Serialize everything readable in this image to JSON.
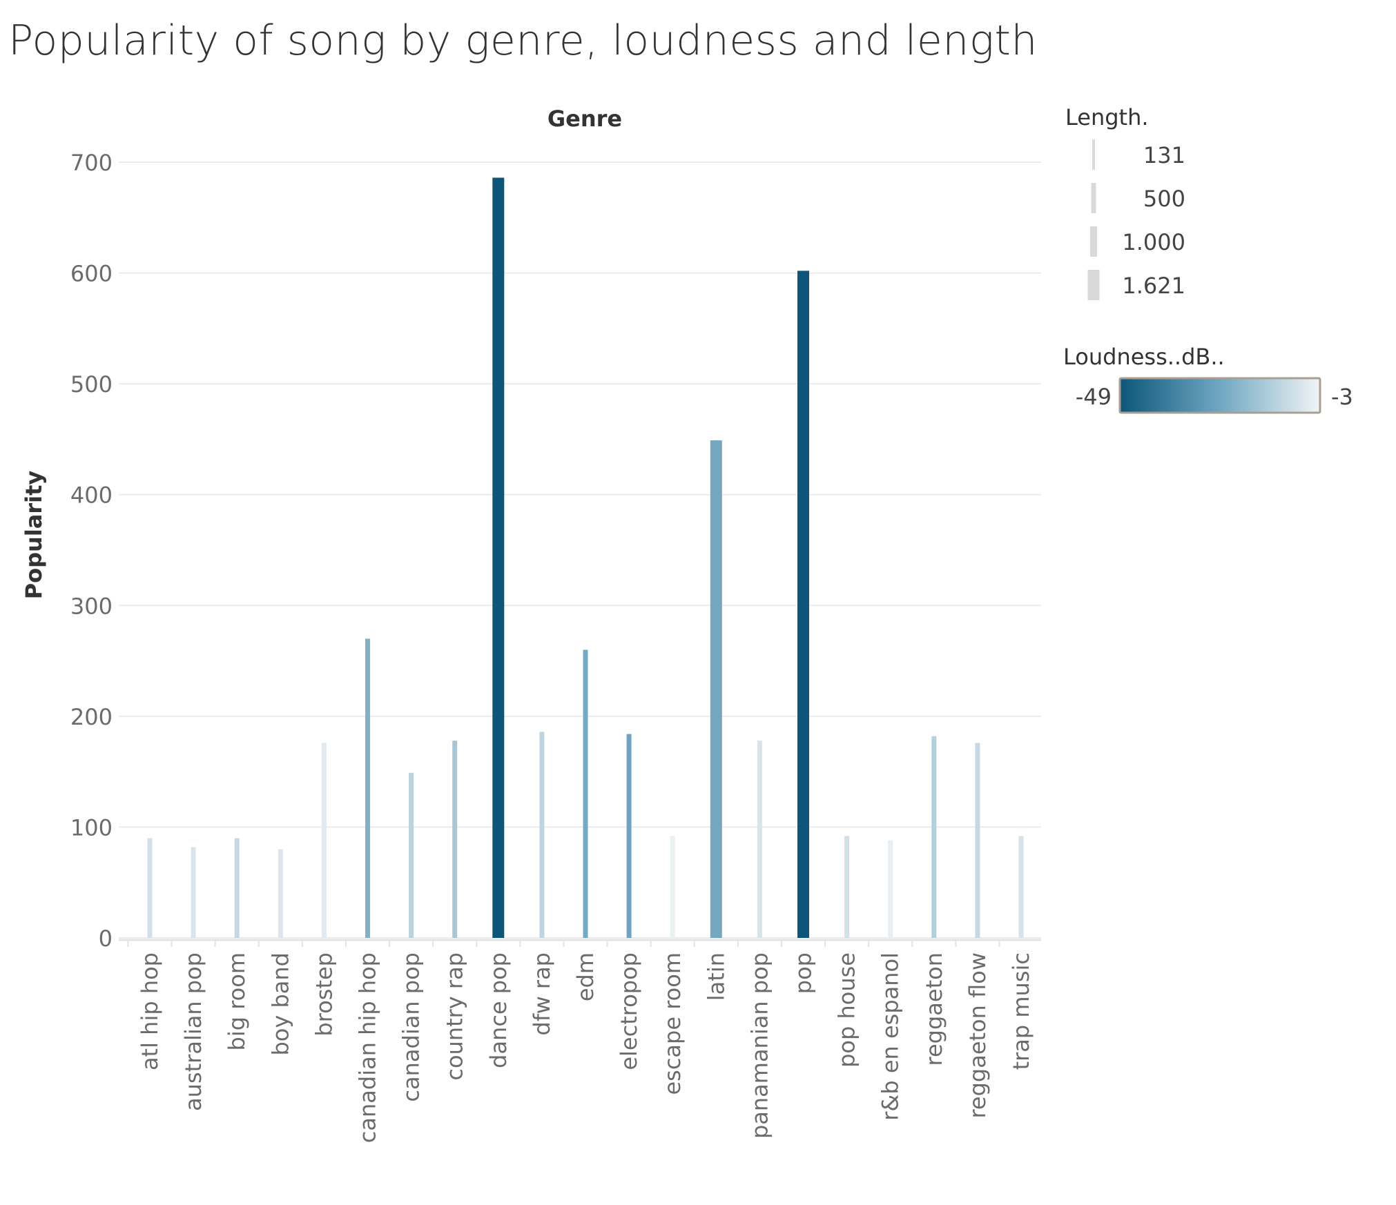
{
  "chart_data": {
    "type": "bar",
    "title": "Popularity of song by genre, loudness and length",
    "column_header": "Genre",
    "ylabel": "Popularity",
    "ylim": [
      0,
      700
    ],
    "yticks": [
      0,
      100,
      200,
      300,
      400,
      500,
      600,
      700
    ],
    "grid": true,
    "categories": [
      "atl hip hop",
      "australian pop",
      "big room",
      "boy band",
      "brostep",
      "canadian hip hop",
      "canadian pop",
      "country rap",
      "dance pop",
      "dfw rap",
      "edm",
      "electropop",
      "escape room",
      "latin",
      "panamanian pop",
      "pop",
      "pop house",
      "r&b en espanol",
      "reggaeton",
      "reggaeton flow",
      "trap music"
    ],
    "values": [
      90,
      82,
      90,
      80,
      176,
      270,
      149,
      178,
      686,
      186,
      260,
      184,
      92,
      449,
      178,
      602,
      92,
      88,
      182,
      176,
      92
    ],
    "colors": [
      "#cfe0ea",
      "#d9e5ed",
      "#c3d8e4",
      "#dde6ed",
      "#e2eaf0",
      "#7fb2c8",
      "#bcd2df",
      "#a7c6d8",
      "#0d5679",
      "#bdd4e1",
      "#72a9c5",
      "#6ea4c1",
      "#ebf0f3",
      "#74a8c0",
      "#d7e4ec",
      "#0d5679",
      "#d2e0e9",
      "#e8eef2",
      "#b2d0de",
      "#c6d8e4",
      "#d6e2ea"
    ],
    "legend_length": {
      "title": "Length.",
      "labels": [
        "131",
        "500",
        "1.000",
        "1.621"
      ],
      "color": "#d9d9d9"
    },
    "legend_loudness": {
      "title": "Loudness..dB..",
      "min_label": "-49",
      "max_label": "-3",
      "color_dark": "#0d5679",
      "color_mid": "#6fa7c2",
      "color_light": "#f2f4f5"
    }
  }
}
